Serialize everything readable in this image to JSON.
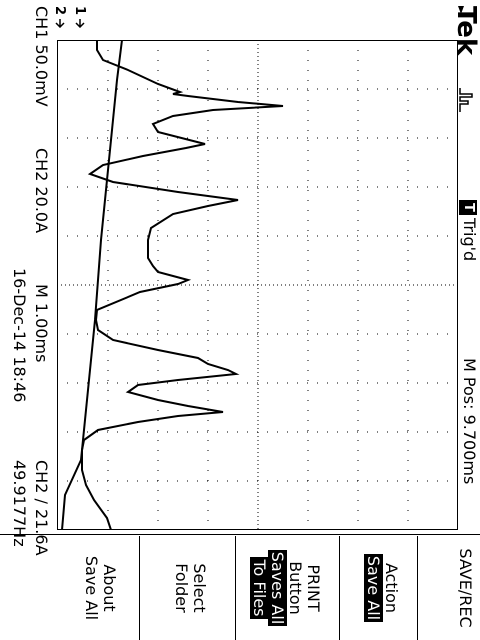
{
  "header": {
    "brand": "Tek",
    "acq_icon": "acquisition-pulse-icon",
    "trigger_badge": "T",
    "trigger_status": "Trig'd",
    "mpos": "M Pos: 9.700ms"
  },
  "markers": {
    "ch1": "1",
    "ch2": "2",
    "trigger_position": "trigger-position-arrow-icon",
    "trigger_level": "trigger-level-arrow-icon"
  },
  "footer": {
    "ch1_scale": "CH1  50.0mV",
    "ch2_scale": "CH2  20.0A",
    "timebase": "M 1.00ms",
    "trigger_info": "CH2 ∕ 21.6A",
    "date": "16-Dec-14 18:46",
    "frequency": "49.9177Hz"
  },
  "menu": {
    "title": "SAVE/REC",
    "action_label": "Action",
    "action_value": "Save All",
    "print_line1": "PRINT",
    "print_line2": "Button",
    "print_value_line1": "Saves All",
    "print_value_line2": "To Files",
    "select_line1": "Select",
    "select_line2": "Folder",
    "about_line1": "About",
    "about_line2": "Save All"
  },
  "colors": {
    "trace": "#000000",
    "background": "#ffffff",
    "grid": "#000000"
  }
}
